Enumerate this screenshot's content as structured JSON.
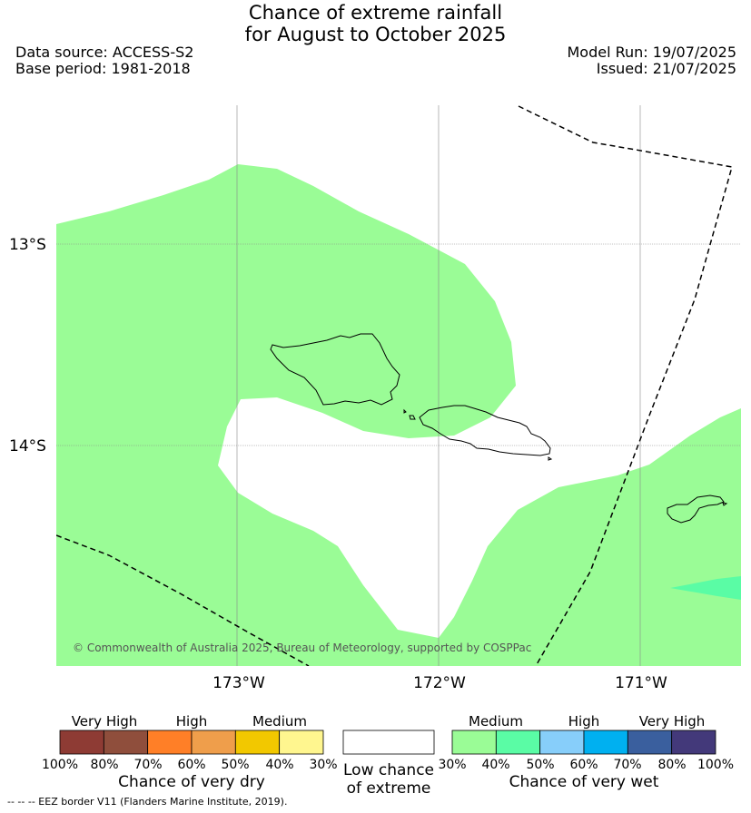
{
  "title": {
    "line1": "Chance of extreme rainfall",
    "line2": "for August to October 2025"
  },
  "info": {
    "data_source": "Data source: ACCESS-S2",
    "base_period": "Base period: 1981-2018",
    "model_run": "Model Run: 19/07/2025",
    "issued": "Issued: 21/07/2025"
  },
  "map": {
    "lat_labels": [
      "13°S",
      "14°S"
    ],
    "lon_labels": [
      "173°W",
      "172°W",
      "171°W"
    ],
    "copyright": "© Commonwealth of Australia 2025, Bureau of Meteorology, supported by COSPPac",
    "colors": {
      "medium_wet": "#9afc96",
      "light_wet": "#5afca5",
      "land_outline": "#000000",
      "border": "#000000"
    }
  },
  "legend_dry": {
    "headers": [
      "Very High",
      "High",
      "Medium"
    ],
    "ticks": [
      "100%",
      "80%",
      "70%",
      "60%",
      "50%",
      "40%",
      "30%"
    ],
    "colors": [
      "#8e3b34",
      "#8f4e3c",
      "#ff7f27",
      "#ef9e4b",
      "#f2c800",
      "#fff68f"
    ],
    "title": "Chance of very dry"
  },
  "legend_low": {
    "line1": "Low chance",
    "line2": "of extreme",
    "color": "#ffffff"
  },
  "legend_wet": {
    "headers": [
      "Medium",
      "High",
      "Very High"
    ],
    "ticks": [
      "30%",
      "40%",
      "50%",
      "60%",
      "70%",
      "80%",
      "100%"
    ],
    "colors": [
      "#9afc96",
      "#5afca5",
      "#87cefa",
      "#00b0f0",
      "#3a5f9e",
      "#43397a"
    ],
    "title": "Chance of very wet"
  },
  "footer": "--  --  -- EEZ border V11 (Flanders Marine Institute, 2019)."
}
